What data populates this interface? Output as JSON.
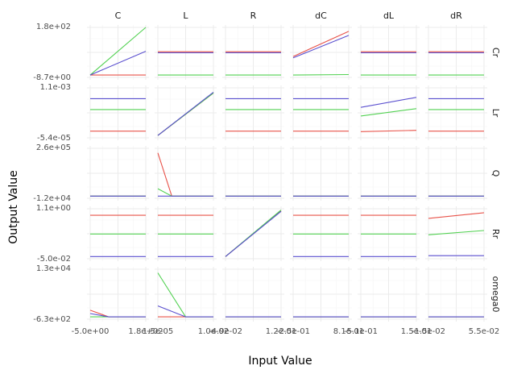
{
  "chart_data": {
    "type": "line",
    "xlabel": "Input Value",
    "ylabel": "Output Value",
    "grid": true,
    "col_labels": [
      "C",
      "L",
      "R",
      "dC",
      "dL",
      "dR"
    ],
    "row_labels": [
      "Cr",
      "Lr",
      "Q",
      "Rr",
      "omega0"
    ],
    "series_colors": [
      "#e8534a",
      "#52d152",
      "#5a4fcf"
    ],
    "x_ticks": [
      {
        "first": "-5.0e+00",
        "last": "1.8e+02"
      },
      {
        "first": "1.5e-05",
        "last": "1.0e-02"
      },
      {
        "first": "-4.9e-02",
        "last": "1.2e-01"
      },
      {
        "first": "-2.5e-01",
        "last": "8.1e-01"
      },
      {
        "first": "-5.1e-01",
        "last": "1.5e-01"
      },
      {
        "first": "-1.5e-02",
        "last": "5.5e-02"
      }
    ],
    "y_ticks": [
      {
        "top": "1.8e+02",
        "bottom": "-8.7e+00"
      },
      {
        "top": "1.1e-03",
        "bottom": "-5.4e-05"
      },
      {
        "top": "2.6e+05",
        "bottom": "-1.2e+04"
      },
      {
        "top": "1.1e+00",
        "bottom": "-5.0e-02"
      },
      {
        "top": "1.3e+04",
        "bottom": "-6.3e+02"
      }
    ],
    "y_limits": [
      [
        -8.7,
        180
      ],
      [
        -5.4e-05,
        0.0011
      ],
      [
        -12000,
        260000
      ],
      [
        -0.05,
        1.1
      ],
      [
        -630,
        13000
      ]
    ],
    "panels": [
      [
        {
          "x": [
            -5,
            180
          ],
          "series": [
            [
              0,
              0
            ],
            [
              0,
              180
            ],
            [
              0,
              90
            ]
          ]
        },
        {
          "x": [
            1.5e-05,
            0.01
          ],
          "series": [
            [
              88,
              88
            ],
            [
              0,
              0
            ],
            [
              84,
              84
            ]
          ]
        },
        {
          "x": [
            -0.049,
            0.12
          ],
          "series": [
            [
              88,
              88
            ],
            [
              0,
              0
            ],
            [
              84,
              84
            ]
          ]
        },
        {
          "x": [
            -0.25,
            0.81
          ],
          "series": [
            [
              70,
              165
            ],
            [
              0,
              2
            ],
            [
              65,
              150
            ]
          ]
        },
        {
          "x": [
            -0.51,
            0.15
          ],
          "series": [
            [
              88,
              88
            ],
            [
              0,
              0
            ],
            [
              84,
              84
            ]
          ]
        },
        {
          "x": [
            -0.015,
            0.055
          ],
          "series": [
            [
              88,
              88
            ],
            [
              0,
              0
            ],
            [
              84,
              84
            ]
          ]
        }
      ],
      [
        {
          "x": [
            -5,
            180
          ],
          "series": [
            [
              0.0001,
              0.0001
            ],
            [
              0.0006,
              0.0006
            ],
            [
              0.00085,
              0.00085
            ]
          ]
        },
        {
          "x": [
            1.5e-05,
            0.01
          ],
          "series": [
            [
              0,
              0.00098
            ],
            [
              0,
              0.00098
            ],
            [
              0,
              0.001
            ]
          ]
        },
        {
          "x": [
            -0.049,
            0.12
          ],
          "series": [
            [
              0.0001,
              0.0001
            ],
            [
              0.0006,
              0.0006
            ],
            [
              0.00085,
              0.00085
            ]
          ]
        },
        {
          "x": [
            -0.25,
            0.81
          ],
          "series": [
            [
              0.0001,
              0.0001
            ],
            [
              0.0006,
              0.0006
            ],
            [
              0.00085,
              0.00085
            ]
          ]
        },
        {
          "x": [
            -0.51,
            0.15
          ],
          "series": [
            [
              9e-05,
              0.00012
            ],
            [
              0.00045,
              0.00062
            ],
            [
              0.00065,
              0.00088
            ]
          ]
        },
        {
          "x": [
            -0.015,
            0.055
          ],
          "series": [
            [
              0.0001,
              0.0001
            ],
            [
              0.0006,
              0.0006
            ],
            [
              0.00085,
              0.00085
            ]
          ]
        }
      ],
      [
        {
          "x": [
            -5,
            180
          ],
          "series": [
            [
              0,
              0
            ],
            [
              0,
              0
            ],
            [
              0,
              0
            ]
          ]
        },
        {
          "x": [
            1.5e-05,
            0.01
          ],
          "series": [
            [
              235000,
              0,
              0,
              0,
              0
            ],
            [
              40000,
              0,
              0,
              0,
              0
            ],
            [
              0,
              0,
              0,
              0,
              0
            ]
          ]
        },
        {
          "x": [
            -0.049,
            0.12
          ],
          "series": [
            [
              0,
              0
            ],
            [
              0,
              0
            ],
            [
              0,
              0
            ]
          ]
        },
        {
          "x": [
            -0.25,
            0.81
          ],
          "series": [
            [
              0,
              0
            ],
            [
              0,
              0
            ],
            [
              0,
              0
            ]
          ]
        },
        {
          "x": [
            -0.51,
            0.15
          ],
          "series": [
            [
              0,
              0
            ],
            [
              0,
              0
            ],
            [
              0,
              0
            ]
          ]
        },
        {
          "x": [
            -0.015,
            0.055
          ],
          "series": [
            [
              0,
              0
            ],
            [
              0,
              0
            ],
            [
              0,
              0
            ]
          ]
        }
      ],
      [
        {
          "x": [
            -5,
            180
          ],
          "series": [
            [
              0.95,
              0.95
            ],
            [
              0.52,
              0.52
            ],
            [
              0.0,
              0.0
            ]
          ]
        },
        {
          "x": [
            1.5e-05,
            0.01
          ],
          "series": [
            [
              0.95,
              0.95
            ],
            [
              0.52,
              0.52
            ],
            [
              0.0,
              0.0
            ]
          ]
        },
        {
          "x": [
            -0.049,
            0.12
          ],
          "series": [
            [
              0,
              1.05
            ],
            [
              0,
              1.07
            ],
            [
              0,
              1.04
            ]
          ]
        },
        {
          "x": [
            -0.25,
            0.81
          ],
          "series": [
            [
              0.95,
              0.95
            ],
            [
              0.52,
              0.52
            ],
            [
              0.0,
              0.0
            ]
          ]
        },
        {
          "x": [
            -0.51,
            0.15
          ],
          "series": [
            [
              0.95,
              0.95
            ],
            [
              0.52,
              0.52
            ],
            [
              0.0,
              0.0
            ]
          ]
        },
        {
          "x": [
            -0.015,
            0.055
          ],
          "series": [
            [
              0.88,
              1.01
            ],
            [
              0.5,
              0.6
            ],
            [
              0.02,
              0.02
            ]
          ]
        }
      ],
      [
        {
          "x": [
            -5,
            180
          ],
          "series": [
            [
              1800,
              0,
              0,
              0
            ],
            [
              0,
              0,
              0,
              0
            ],
            [
              900,
              0,
              0,
              0
            ]
          ]
        },
        {
          "x": [
            1.5e-05,
            0.01
          ],
          "series": [
            [
              0,
              0,
              0
            ],
            [
              12000,
              0,
              0
            ],
            [
              3000,
              0,
              0
            ]
          ]
        },
        {
          "x": [
            -0.049,
            0.12
          ],
          "series": [
            [
              0,
              0
            ],
            [
              0,
              0
            ],
            [
              0,
              0
            ]
          ]
        },
        {
          "x": [
            -0.25,
            0.81
          ],
          "series": [
            [
              0,
              0
            ],
            [
              0,
              0
            ],
            [
              0,
              0
            ]
          ]
        },
        {
          "x": [
            -0.51,
            0.15
          ],
          "series": [
            [
              0,
              0
            ],
            [
              0,
              0
            ],
            [
              0,
              0
            ]
          ]
        },
        {
          "x": [
            -0.015,
            0.055
          ],
          "series": [
            [
              0,
              0
            ],
            [
              0,
              0
            ],
            [
              0,
              0
            ]
          ]
        }
      ]
    ]
  }
}
